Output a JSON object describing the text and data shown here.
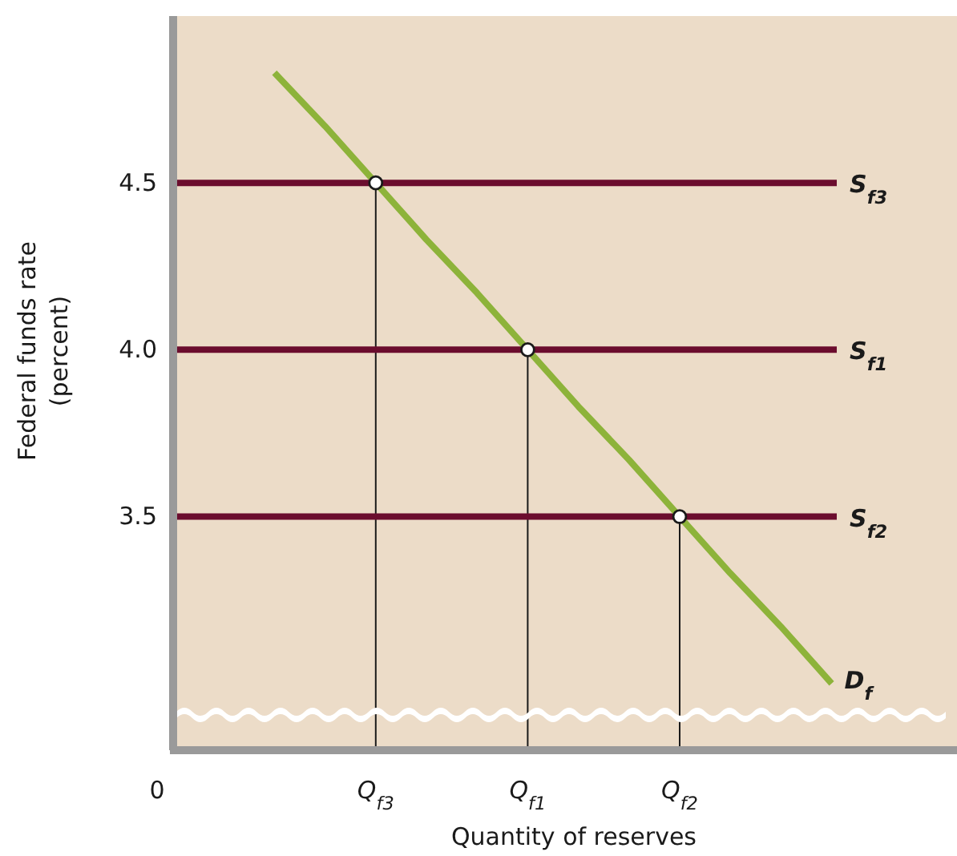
{
  "chart_data": {
    "type": "line",
    "xlabel": "Quantity of reserves",
    "ylabel": "Federal funds rate (percent)",
    "categories": [
      "0",
      null,
      null,
      null,
      "Q$_{f3}$",
      null,
      null,
      "Q$_{f1}$",
      null,
      null,
      "Q$_{f2}$",
      null,
      null,
      null,
      null,
      null
    ],
    "ylim": [
      2.8,
      5.0
    ],
    "yticks": [
      {
        "value": 4.5,
        "label": "4.5"
      },
      {
        "value": 4.0,
        "label": "4.0"
      },
      {
        "value": 3.5,
        "label": "3.5"
      }
    ],
    "grid": false,
    "ref_lines": [
      {
        "axis": "y",
        "value": 4.5,
        "label": "S$_{f3}$",
        "color": "#6b0d2e"
      },
      {
        "axis": "y",
        "value": 4.0,
        "label": "S$_{f1}$",
        "color": "#6b0d2e"
      },
      {
        "axis": "y",
        "value": 3.5,
        "label": "S$_{f2}$",
        "color": "#6b0d2e"
      }
    ],
    "series": [
      {
        "name": "D$_{f}$",
        "color": "#8db33a",
        "values": [
          null,
          null,
          4.83,
          4.67,
          4.5,
          4.33,
          4.17,
          4.0,
          3.83,
          3.67,
          3.5,
          3.33,
          3.17,
          3.0,
          null,
          null
        ]
      },
      {
        "type": "lollipop",
        "marker": "circle",
        "color": "#1a1a1a",
        "values": [
          null,
          null,
          null,
          null,
          4.5,
          null,
          null,
          4.0,
          null,
          null,
          3.5,
          null,
          null,
          null,
          null,
          null
        ]
      }
    ]
  }
}
